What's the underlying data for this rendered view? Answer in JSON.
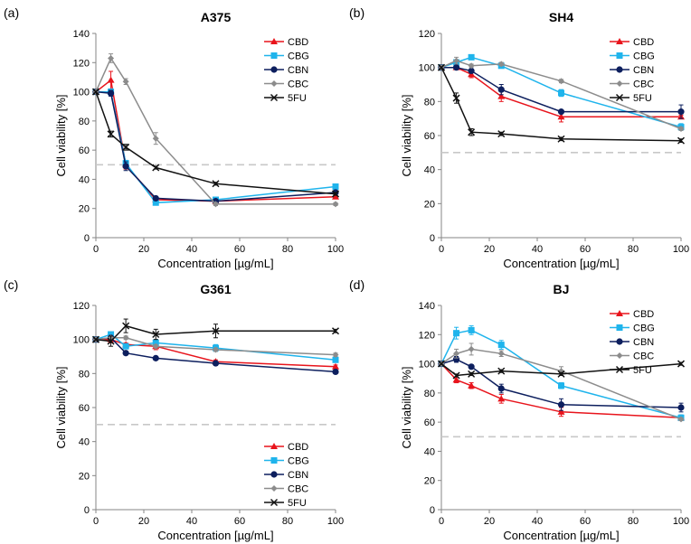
{
  "colors": {
    "CBD": "#e8141c",
    "CBG": "#1fb4ec",
    "CBN": "#0d1f5e",
    "CBC": "#8c8c8c",
    "5FU": "#111111",
    "threshold": "#c8c8c8"
  },
  "chart_data": [
    {
      "type": "line",
      "panel_label": "(a)",
      "title": "A375",
      "xlabel": "Concentration [µg/mL]",
      "ylabel": "Cell viability [%]",
      "xlim": [
        0,
        100
      ],
      "ylim": [
        0,
        140
      ],
      "xticks": [
        0,
        20,
        40,
        60,
        80,
        100
      ],
      "yticks": [
        0,
        20,
        40,
        60,
        80,
        100,
        120,
        140
      ],
      "threshold": 50,
      "legend_position": "top-right",
      "x": [
        0,
        6.25,
        12.5,
        25,
        50,
        100
      ],
      "series": [
        {
          "name": "CBD",
          "values": [
            100,
            108,
            50,
            26,
            25,
            28
          ],
          "errors": [
            0,
            6,
            3,
            1,
            1,
            1
          ]
        },
        {
          "name": "CBG",
          "values": [
            100,
            100,
            51,
            24,
            26,
            35
          ],
          "errors": [
            0,
            2,
            2,
            1,
            1,
            1
          ]
        },
        {
          "name": "CBN",
          "values": [
            100,
            99,
            49,
            27,
            25,
            31
          ],
          "errors": [
            0,
            2,
            3,
            1,
            1,
            1
          ]
        },
        {
          "name": "CBC",
          "values": [
            100,
            123,
            107,
            68,
            23,
            23
          ],
          "errors": [
            0,
            3,
            2,
            4,
            1,
            1
          ]
        },
        {
          "name": "5FU",
          "values": [
            100,
            71,
            62,
            48,
            37,
            30
          ],
          "errors": [
            0,
            2,
            2,
            1,
            1,
            1
          ]
        }
      ]
    },
    {
      "type": "line",
      "panel_label": "(b)",
      "title": "SH4",
      "xlabel": "Concentration [µg/mL]",
      "ylabel": "Cell viability [%]",
      "xlim": [
        0,
        100
      ],
      "ylim": [
        0,
        120
      ],
      "xticks": [
        0,
        20,
        40,
        60,
        80,
        100
      ],
      "yticks": [
        0,
        20,
        40,
        60,
        80,
        100,
        120
      ],
      "threshold": 50,
      "legend_position": "top-right",
      "x": [
        0,
        6.25,
        12.5,
        25,
        50,
        100
      ],
      "series": [
        {
          "name": "CBD",
          "values": [
            100,
            100,
            96,
            83,
            71,
            71
          ],
          "errors": [
            0,
            1,
            2,
            3,
            3,
            1
          ]
        },
        {
          "name": "CBG",
          "values": [
            100,
            103,
            106,
            101,
            85,
            65
          ],
          "errors": [
            0,
            1,
            1,
            1,
            2,
            2
          ]
        },
        {
          "name": "CBN",
          "values": [
            100,
            100,
            98,
            87,
            74,
            74
          ],
          "errors": [
            0,
            1,
            1,
            3,
            1,
            4
          ]
        },
        {
          "name": "CBC",
          "values": [
            100,
            104,
            101,
            102,
            92,
            64
          ],
          "errors": [
            0,
            2,
            1,
            1,
            1,
            1
          ]
        },
        {
          "name": "5FU",
          "values": [
            100,
            82,
            62,
            61,
            58,
            57
          ],
          "errors": [
            0,
            3,
            2,
            1,
            1,
            1
          ]
        }
      ]
    },
    {
      "type": "line",
      "panel_label": "(c)",
      "title": "G361",
      "xlabel": "Concentration [µg/mL]",
      "ylabel": "Cell viability [%]",
      "xlim": [
        0,
        100
      ],
      "ylim": [
        0,
        120
      ],
      "xticks": [
        0,
        20,
        40,
        60,
        80,
        100
      ],
      "yticks": [
        0,
        20,
        40,
        60,
        80,
        100,
        120
      ],
      "threshold": 50,
      "legend_position": "bottom-right",
      "x": [
        0,
        6.25,
        12.5,
        25,
        50,
        100
      ],
      "series": [
        {
          "name": "CBD",
          "values": [
            100,
            100,
            97,
            96,
            87,
            84
          ],
          "errors": [
            0,
            2,
            1,
            2,
            1,
            1
          ]
        },
        {
          "name": "CBG",
          "values": [
            100,
            103,
            96,
            98,
            95,
            88
          ],
          "errors": [
            0,
            1,
            1,
            2,
            2,
            1
          ]
        },
        {
          "name": "CBN",
          "values": [
            100,
            101,
            92,
            89,
            86,
            81
          ],
          "errors": [
            0,
            1,
            1,
            1,
            1,
            1
          ]
        },
        {
          "name": "CBC",
          "values": [
            100,
            101,
            101,
            96,
            94,
            91
          ],
          "errors": [
            0,
            1,
            1,
            1,
            1,
            1
          ]
        },
        {
          "name": "5FU",
          "values": [
            100,
            99,
            108,
            103,
            105,
            105
          ],
          "errors": [
            0,
            3,
            4,
            3,
            4,
            1
          ]
        }
      ]
    },
    {
      "type": "line",
      "panel_label": "(d)",
      "title": "BJ",
      "xlabel": "Concentration [µg/mL]",
      "ylabel": "Cell viability [%]",
      "xlim": [
        0,
        100
      ],
      "ylim": [
        0,
        140
      ],
      "xticks": [
        0,
        20,
        40,
        60,
        80,
        100
      ],
      "yticks": [
        0,
        20,
        40,
        60,
        80,
        100,
        120,
        140
      ],
      "threshold": 50,
      "legend_position": "top-right",
      "x": [
        0,
        6.25,
        12.5,
        25,
        50,
        100
      ],
      "series": [
        {
          "name": "CBD",
          "values": [
            100,
            89,
            85,
            76,
            67,
            63
          ],
          "errors": [
            0,
            2,
            2,
            3,
            3,
            1
          ]
        },
        {
          "name": "CBG",
          "values": [
            100,
            121,
            123,
            113,
            85,
            63
          ],
          "errors": [
            0,
            4,
            3,
            3,
            2,
            2
          ]
        },
        {
          "name": "CBN",
          "values": [
            100,
            103,
            98,
            83,
            72,
            70
          ],
          "errors": [
            0,
            2,
            1,
            3,
            4,
            3
          ]
        },
        {
          "name": "CBC",
          "values": [
            100,
            107,
            110,
            107,
            95,
            62
          ],
          "errors": [
            0,
            3,
            4,
            2,
            3,
            1
          ]
        },
        {
          "name": "5FU",
          "values": [
            100,
            92,
            93,
            95,
            93,
            100
          ],
          "errors": [
            0,
            1,
            1,
            1,
            1,
            1
          ]
        }
      ]
    }
  ]
}
